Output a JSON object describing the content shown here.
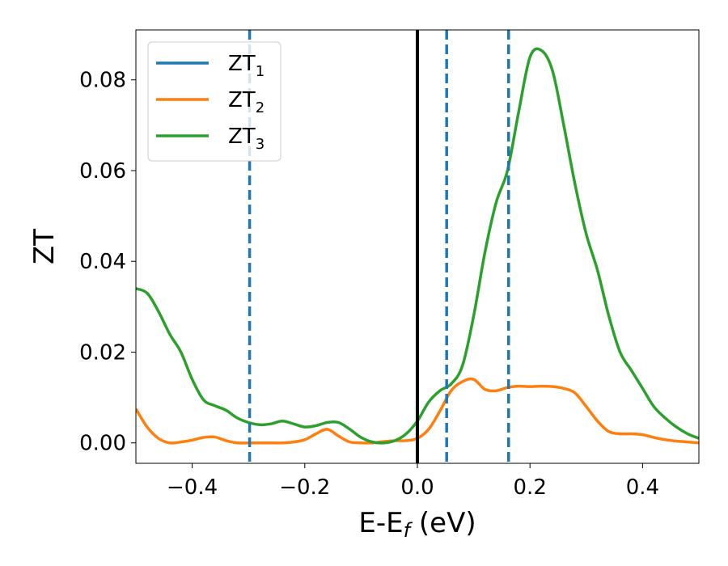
{
  "chart_data": {
    "type": "line",
    "title": "",
    "xlabel": {
      "main": "E-E",
      "sub": "f",
      "unit": " (eV)"
    },
    "ylabel": "ZT",
    "xlim": [
      -0.5,
      0.5
    ],
    "ylim": [
      -0.0045,
      0.091
    ],
    "xticks": [
      -0.4,
      -0.2,
      0.0,
      0.2,
      0.4
    ],
    "xtick_labels": [
      "−0.4",
      "−0.2",
      "0.0",
      "0.2",
      "0.4"
    ],
    "yticks": [
      0.0,
      0.02,
      0.04,
      0.06,
      0.08
    ],
    "ytick_labels": [
      "0.00",
      "0.02",
      "0.04",
      "0.06",
      "0.08"
    ],
    "grid": false,
    "legend_position": "upper-left",
    "vlines": [
      {
        "x": 0.0,
        "color": "#000000",
        "style": "solid"
      },
      {
        "x": -0.298,
        "color": "#1f77b4",
        "style": "dashed"
      },
      {
        "x": 0.052,
        "color": "#1f77b4",
        "style": "dashed"
      },
      {
        "x": 0.162,
        "color": "#1f77b4",
        "style": "dashed"
      }
    ],
    "series": [
      {
        "name": {
          "main": "ZT",
          "sub": "1"
        },
        "color": "#1f77b4",
        "x": [],
        "y": []
      },
      {
        "name": {
          "main": "ZT",
          "sub": "2"
        },
        "color": "#ff7f0e",
        "x": [
          -0.5,
          -0.48,
          -0.46,
          -0.44,
          -0.42,
          -0.4,
          -0.38,
          -0.36,
          -0.34,
          -0.32,
          -0.3,
          -0.28,
          -0.26,
          -0.24,
          -0.22,
          -0.2,
          -0.18,
          -0.16,
          -0.14,
          -0.12,
          -0.1,
          -0.08,
          -0.06,
          -0.04,
          -0.02,
          0.0,
          0.02,
          0.04,
          0.06,
          0.08,
          0.1,
          0.12,
          0.14,
          0.16,
          0.18,
          0.2,
          0.22,
          0.24,
          0.26,
          0.28,
          0.3,
          0.32,
          0.34,
          0.36,
          0.38,
          0.4,
          0.42,
          0.44,
          0.46,
          0.48,
          0.5
        ],
        "y": [
          0.0075,
          0.0035,
          0.001,
          0.0,
          0.0002,
          0.0006,
          0.0012,
          0.0013,
          0.0005,
          0.0,
          0.0,
          0.0,
          0.0,
          0.0,
          0.0002,
          0.0007,
          0.002,
          0.003,
          0.0015,
          0.0002,
          0.0,
          0.0,
          0.0003,
          0.0005,
          0.0005,
          0.001,
          0.003,
          0.007,
          0.0115,
          0.0135,
          0.014,
          0.0118,
          0.0115,
          0.0122,
          0.0125,
          0.0124,
          0.0125,
          0.0124,
          0.012,
          0.011,
          0.008,
          0.0048,
          0.0025,
          0.002,
          0.002,
          0.0018,
          0.0012,
          0.0007,
          0.0004,
          0.0002,
          0.0
        ]
      },
      {
        "name": {
          "main": "ZT",
          "sub": "3"
        },
        "color": "#2ca02c",
        "x": [
          -0.5,
          -0.48,
          -0.46,
          -0.44,
          -0.42,
          -0.4,
          -0.38,
          -0.36,
          -0.34,
          -0.32,
          -0.3,
          -0.28,
          -0.26,
          -0.24,
          -0.22,
          -0.2,
          -0.18,
          -0.16,
          -0.14,
          -0.12,
          -0.1,
          -0.08,
          -0.06,
          -0.04,
          -0.02,
          0.0,
          0.02,
          0.04,
          0.06,
          0.08,
          0.1,
          0.12,
          0.14,
          0.16,
          0.18,
          0.2,
          0.22,
          0.24,
          0.26,
          0.28,
          0.3,
          0.32,
          0.34,
          0.36,
          0.38,
          0.4,
          0.42,
          0.44,
          0.46,
          0.48,
          0.5
        ],
        "y": [
          0.034,
          0.033,
          0.029,
          0.024,
          0.02,
          0.014,
          0.0095,
          0.0082,
          0.0072,
          0.0055,
          0.0045,
          0.004,
          0.0042,
          0.0048,
          0.0042,
          0.0035,
          0.0038,
          0.0045,
          0.0045,
          0.003,
          0.0012,
          0.0002,
          0.0,
          0.0005,
          0.002,
          0.0048,
          0.009,
          0.0115,
          0.013,
          0.017,
          0.028,
          0.042,
          0.053,
          0.06,
          0.073,
          0.085,
          0.0865,
          0.082,
          0.07,
          0.057,
          0.046,
          0.038,
          0.028,
          0.02,
          0.016,
          0.012,
          0.008,
          0.0055,
          0.0035,
          0.002,
          0.001
        ]
      }
    ]
  }
}
